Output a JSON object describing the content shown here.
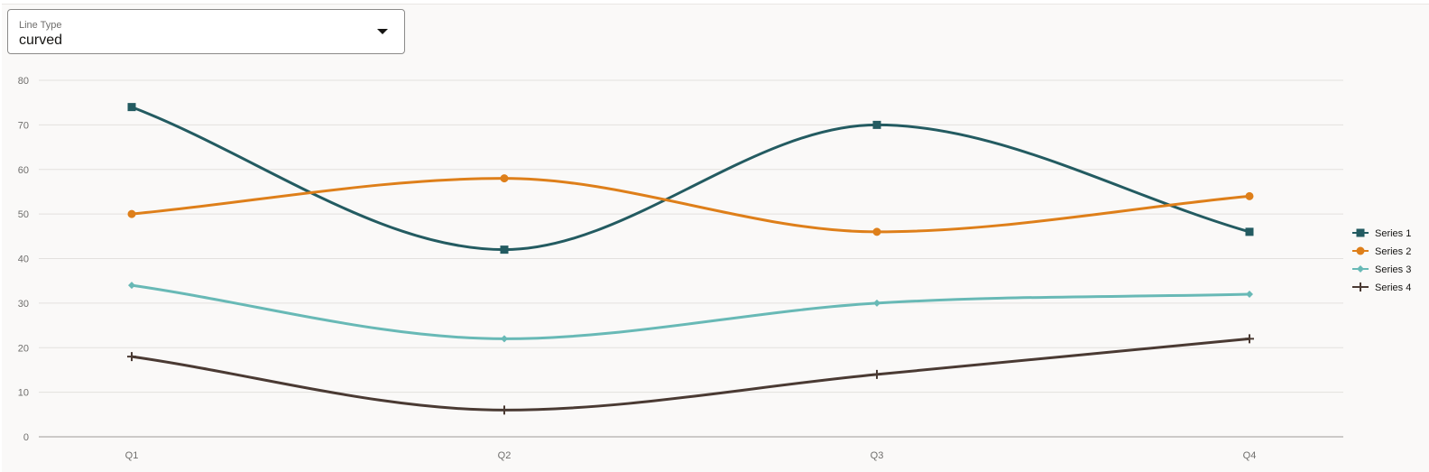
{
  "controls": {
    "line_type": {
      "label": "Line Type",
      "value": "curved"
    }
  },
  "chart_data": {
    "type": "line",
    "line_style": "curved",
    "categories": [
      "Q1",
      "Q2",
      "Q3",
      "Q4"
    ],
    "series": [
      {
        "name": "Series 1",
        "values": [
          74,
          42,
          70,
          46
        ],
        "color": "#235b61",
        "marker": "square"
      },
      {
        "name": "Series 2",
        "values": [
          50,
          58,
          46,
          54
        ],
        "color": "#de7f1a",
        "marker": "circle"
      },
      {
        "name": "Series 3",
        "values": [
          34,
          22,
          30,
          32
        ],
        "color": "#68b9b6",
        "marker": "diamond"
      },
      {
        "name": "Series 4",
        "values": [
          18,
          6,
          14,
          22
        ],
        "color": "#4a3a33",
        "marker": "plus"
      }
    ],
    "y_ticks": [
      0,
      10,
      20,
      30,
      40,
      50,
      60,
      70,
      80
    ],
    "ylim": [
      0,
      80
    ],
    "grid": true,
    "legend": "right"
  }
}
